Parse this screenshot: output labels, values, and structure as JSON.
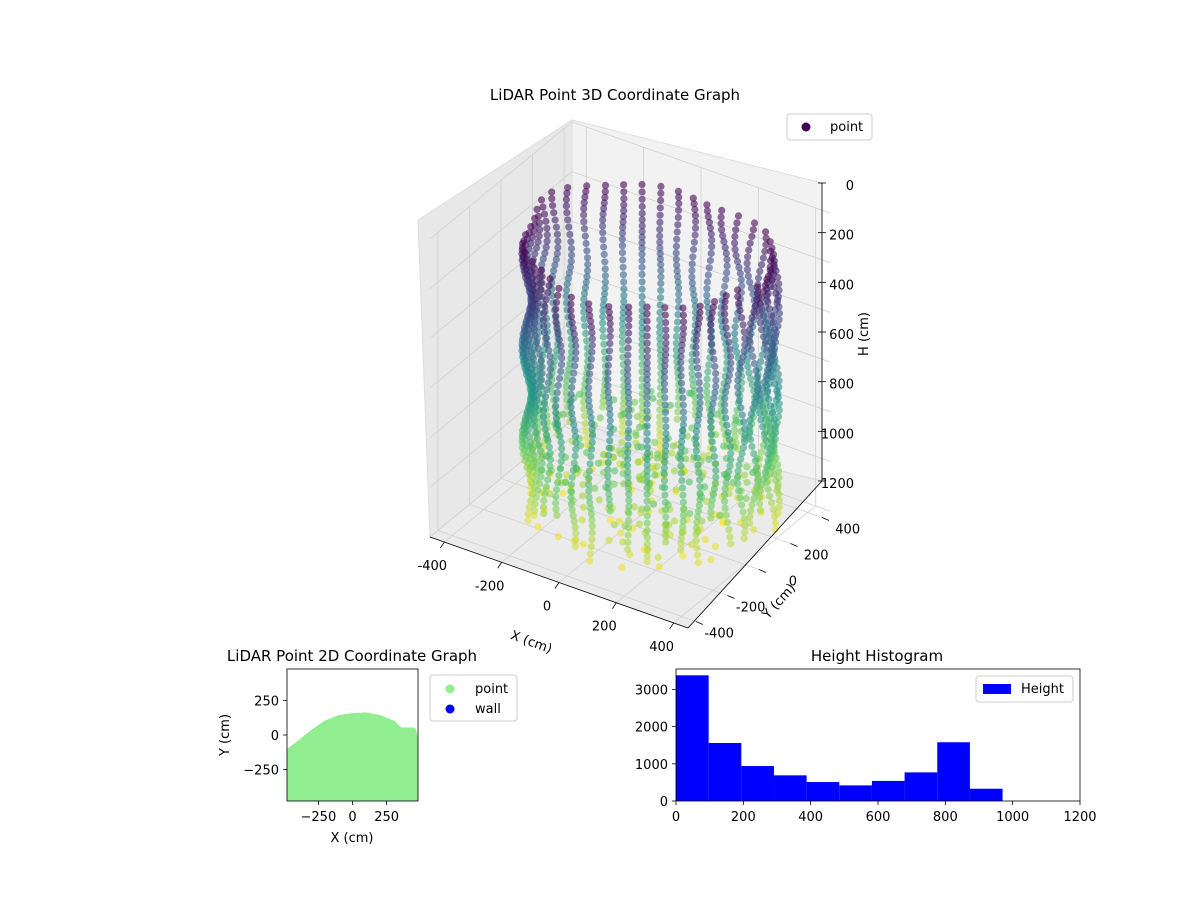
{
  "chart_data": [
    {
      "type": "scatter",
      "title": "LiDAR Point 3D Coordinate Graph",
      "xlabel": "X (cm)",
      "ylabel": "Y (cm)",
      "zlabel": "H (cm)",
      "xlim": [
        -450,
        450
      ],
      "ylim": [
        -450,
        450
      ],
      "zlim": [
        1200,
        0
      ],
      "x_ticks": [
        "-400",
        "-200",
        "0",
        "200",
        "400"
      ],
      "y_ticks": [
        "-400",
        "-200",
        "0",
        "200",
        "400"
      ],
      "z_ticks": [
        "0",
        "200",
        "400",
        "600",
        "800",
        "1000",
        "1200"
      ],
      "legend": [
        {
          "label": "point",
          "color": "#440154"
        }
      ],
      "legend_position": "top-right",
      "colormap": [
        "#440154",
        "#3b528b",
        "#21908c",
        "#5dc963",
        "#fde725"
      ],
      "grid": true,
      "scan": {
        "radius": 380,
        "center_x": 40,
        "center_y": 20,
        "h_min": 80,
        "h_max": 1170,
        "lines": 42
      }
    },
    {
      "type": "scatter",
      "title": "LiDAR Point 2D Coordinate Graph",
      "xlabel": "X (cm)",
      "ylabel": "Y (cm)",
      "xlim": [
        -480,
        480
      ],
      "ylim": [
        -480,
        480
      ],
      "x_ticks": [
        -250,
        0,
        250
      ],
      "y_ticks": [
        250,
        0,
        -250
      ],
      "legend": [
        {
          "label": "point",
          "color": "#90ee90"
        },
        {
          "label": "wall",
          "color": "#0000ff"
        }
      ],
      "legend_position": "outside-right",
      "point_top_profile": [
        [
          -480,
          -120
        ],
        [
          -400,
          -60
        ],
        [
          -300,
          20
        ],
        [
          -200,
          90
        ],
        [
          -100,
          130
        ],
        [
          0,
          145
        ],
        [
          100,
          150
        ],
        [
          200,
          130
        ],
        [
          300,
          90
        ],
        [
          350,
          40
        ],
        [
          450,
          40
        ],
        [
          480,
          -80
        ]
      ],
      "point_bottom": -480
    },
    {
      "type": "bar",
      "title": "Height Histogram",
      "bin_edges": [
        0,
        97,
        194,
        291,
        388,
        485,
        582,
        679,
        776,
        873,
        970
      ],
      "values": [
        3380,
        1560,
        940,
        690,
        510,
        420,
        540,
        770,
        1580,
        330
      ],
      "xlim": [
        0,
        1200
      ],
      "ylim": [
        0,
        3550
      ],
      "x_ticks": [
        0,
        200,
        400,
        600,
        800,
        1000,
        1200
      ],
      "y_ticks": [
        0,
        1000,
        2000,
        3000
      ],
      "legend": [
        {
          "label": "Height",
          "color": "#0000ff"
        }
      ],
      "legend_position": "top-right",
      "bar_color": "#0000ff"
    }
  ]
}
